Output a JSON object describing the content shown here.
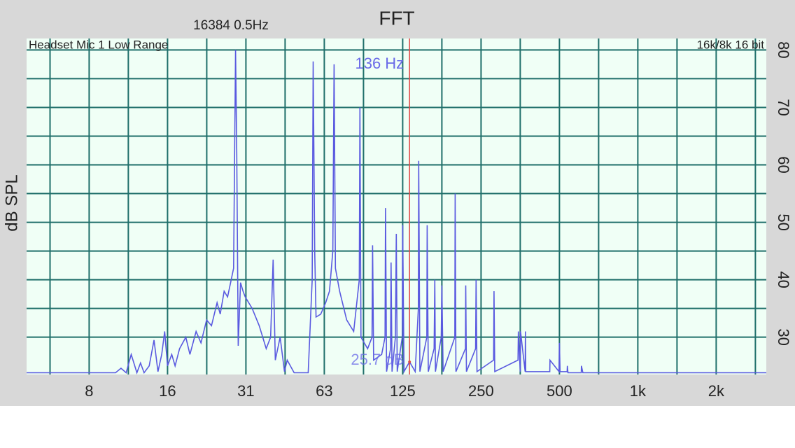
{
  "chart_data": {
    "type": "line",
    "title": "FFT",
    "subtitle": "16384  0.5Hz",
    "annotations": {
      "left": "Headset Mic 1 Low Range",
      "right": "16k/8k 16 bit"
    },
    "y_label": "dB SPL",
    "x_scale": "log",
    "grid": true,
    "grid_color": "#1f6f6a",
    "background": "#f0fff6",
    "xlim": [
      4.6,
      3190
    ],
    "ylim": [
      23.5,
      82
    ],
    "xticks": [
      8,
      16,
      {
        "value": 32,
        "label": "31"
      },
      {
        "value": 64,
        "label": "63"
      },
      {
        "value": 128,
        "label": "125"
      },
      {
        "value": 256,
        "label": "250"
      },
      {
        "value": 512,
        "label": "500"
      },
      {
        "value": 1024,
        "label": "1k"
      },
      {
        "value": 2048,
        "label": "2k"
      }
    ],
    "xgrid_minor": [
      5.66,
      11.31,
      22.63,
      45.25,
      90.51,
      181.02,
      362.04,
      724.08,
      1448.15,
      2896.31
    ],
    "yticks": [
      30,
      40,
      50,
      60,
      70,
      80
    ],
    "ygrid_minor": [
      35,
      45,
      55,
      65,
      75
    ],
    "series": [
      {
        "color": "#5a5ae0",
        "x": [
          4.6,
          10.1,
          10.6,
          11.1,
          11.6,
          12.2,
          12.6,
          13.0,
          13.6,
          14.2,
          14.7,
          15.2,
          15.6,
          16.0,
          16.6,
          17.1,
          17.8,
          18.8,
          19.5,
          20.6,
          21.5,
          22.6,
          23.6,
          24.8,
          25.5,
          26.4,
          27.2,
          28.1,
          28.7,
          29.2,
          29.5,
          29.9,
          30.5,
          31.2,
          31.8,
          33.8,
          36.0,
          38.3,
          39.8,
          40.7,
          41.5,
          43.3,
          45.0,
          46.1,
          49.0,
          55.5,
          57.5,
          58.0,
          58.8,
          59.5,
          62.0,
          64.8,
          67.0,
          69.0,
          69.8,
          70.6,
          73.3,
          78.0,
          83.0,
          87.2,
          87.7,
          88.5,
          93.9,
          97.6,
          98.1,
          99.0,
          106.3,
          109.5,
          110.0,
          111.0,
          115.0,
          115.5,
          116.5,
          120.0,
          121.0,
          122.0,
          127.5,
          128.0,
          129.5,
          136.0,
          143.0,
          147.0,
          147.5,
          149.0,
          158.5,
          159.0,
          160.5,
          169.0,
          170.0,
          171.0,
          180.0,
          181.0,
          183.0,
          203.0,
          203.6,
          205.0,
          223.0,
          223.5,
          225.0,
          244.0,
          245.0,
          247.0,
          286.0,
          287.0,
          289.0,
          355.0,
          356.0,
          362.0,
          363.0,
          378.0,
          379.0,
          380.0,
          470.0,
          471.0,
          510.0,
          512.0,
          515.0,
          548.0,
          549.0,
          552.0,
          621.0,
          622.0,
          630.0,
          3190
        ],
        "values": [
          23.8,
          23.8,
          24.6,
          23.8,
          27,
          23.8,
          25.5,
          23.8,
          25,
          29.5,
          24,
          27,
          31,
          25,
          27,
          25,
          28,
          30,
          27,
          31,
          29,
          33,
          32,
          36,
          34,
          38,
          37,
          40,
          42,
          80,
          62,
          28.5,
          39.5,
          38,
          37,
          35,
          32,
          28,
          30,
          43.5,
          26,
          30,
          24,
          26,
          23.8,
          23.8,
          40,
          78,
          45,
          33.5,
          34,
          36,
          38,
          45,
          77.5,
          42,
          38,
          33,
          31,
          40,
          70,
          30,
          28,
          30,
          46,
          26,
          27,
          30,
          52.5,
          24,
          28,
          43,
          24,
          30,
          48,
          24,
          30,
          49.5,
          24,
          25.7,
          24,
          35,
          60.7,
          24,
          30,
          49.5,
          24,
          28,
          40,
          24,
          30,
          39,
          24,
          30,
          55,
          24,
          28,
          39,
          24,
          28,
          40,
          24,
          26,
          38,
          24,
          26,
          31,
          24,
          31,
          24,
          31,
          24,
          24,
          26,
          24,
          29,
          24,
          24,
          25,
          23.8,
          23.8,
          25,
          23.8,
          23.8
        ]
      }
    ],
    "cursor": {
      "x": 136,
      "y": 25.7,
      "color": "#e04848",
      "label_x": "136 Hz",
      "label_y": "25.7 dB"
    }
  }
}
